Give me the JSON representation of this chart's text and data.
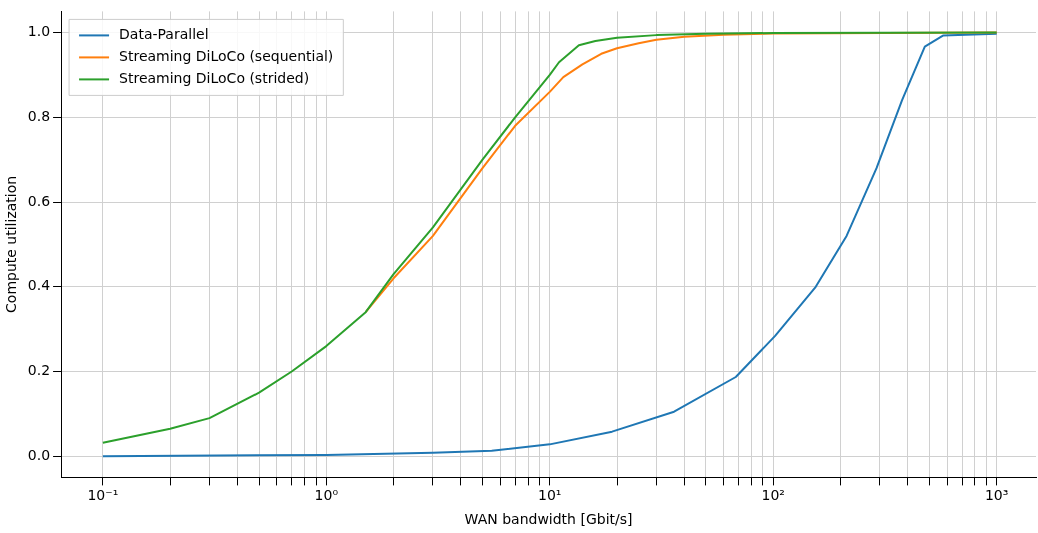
{
  "chart_data": {
    "type": "line",
    "xlabel": "WAN bandwidth [Gbit/s]",
    "ylabel": "Compute utilization",
    "log": "x",
    "grid": true,
    "legend": "top left",
    "marker": "none",
    "line_style": "solid",
    "xlim": [
      0.065,
      1500
    ],
    "ylim": [
      -0.05,
      1.05
    ],
    "xticks": [
      {
        "value": 0.1,
        "label": "10⁻¹"
      },
      {
        "value": 0.2,
        "label": null
      },
      {
        "value": 0.3,
        "label": null
      },
      {
        "value": 0.4,
        "label": null
      },
      {
        "value": 0.5,
        "label": null
      },
      {
        "value": 0.6,
        "label": null
      },
      {
        "value": 0.7,
        "label": null
      },
      {
        "value": 0.8,
        "label": null
      },
      {
        "value": 0.9,
        "label": null
      },
      {
        "value": 1,
        "label": "10⁰"
      },
      {
        "value": 2,
        "label": null
      },
      {
        "value": 3,
        "label": null
      },
      {
        "value": 4,
        "label": null
      },
      {
        "value": 5,
        "label": null
      },
      {
        "value": 6,
        "label": null
      },
      {
        "value": 7,
        "label": null
      },
      {
        "value": 8,
        "label": null
      },
      {
        "value": 9,
        "label": null
      },
      {
        "value": 10,
        "label": "10¹"
      },
      {
        "value": 20,
        "label": null
      },
      {
        "value": 30,
        "label": null
      },
      {
        "value": 40,
        "label": null
      },
      {
        "value": 50,
        "label": null
      },
      {
        "value": 60,
        "label": null
      },
      {
        "value": 70,
        "label": null
      },
      {
        "value": 80,
        "label": null
      },
      {
        "value": 90,
        "label": null
      },
      {
        "value": 100,
        "label": "10²"
      },
      {
        "value": 200,
        "label": null
      },
      {
        "value": 300,
        "label": null
      },
      {
        "value": 400,
        "label": null
      },
      {
        "value": 500,
        "label": null
      },
      {
        "value": 600,
        "label": null
      },
      {
        "value": 700,
        "label": null
      },
      {
        "value": 800,
        "label": null
      },
      {
        "value": 900,
        "label": null
      },
      {
        "value": 1000,
        "label": "10³"
      }
    ],
    "yticks": [
      {
        "value": 0,
        "label": "0.0"
      },
      {
        "value": 0.2,
        "label": "0.2"
      },
      {
        "value": 0.4,
        "label": "0.4"
      },
      {
        "value": 0.6,
        "label": "0.6"
      },
      {
        "value": 0.8,
        "label": "0.8"
      },
      {
        "value": 1,
        "label": "1.0"
      }
    ],
    "series": [
      {
        "name": "Data-Parallel",
        "color": "#1f77b4",
        "x": [
          0.1,
          1,
          3,
          5.5,
          10,
          19,
          36,
          68,
          102,
          155,
          213,
          290,
          377,
          477,
          575,
          1000
        ],
        "values": [
          0,
          0.003,
          0.008,
          0.013,
          0.028,
          0.058,
          0.105,
          0.187,
          0.284,
          0.4,
          0.52,
          0.68,
          0.84,
          0.967,
          0.993,
          0.997
        ]
      },
      {
        "name": "Streaming DiLoCo (sequential)",
        "color": "#ff7f0e",
        "x": [
          1.5,
          2,
          3,
          5,
          7,
          10,
          11.5,
          14,
          17,
          20,
          25,
          30,
          40,
          60,
          100,
          1000
        ],
        "values": [
          0.34,
          0.42,
          0.52,
          0.68,
          0.78,
          0.86,
          0.895,
          0.925,
          0.95,
          0.963,
          0.975,
          0.983,
          0.99,
          0.995,
          0.998,
          1.0
        ]
      },
      {
        "name": "Streaming DiLoCo (strided)",
        "color": "#2ca02c",
        "x": [
          0.1,
          0.2,
          0.3,
          0.5,
          0.7,
          1,
          1.5,
          2,
          3,
          5,
          7,
          10,
          11,
          13.5,
          16,
          20,
          30,
          50,
          100,
          1000
        ],
        "values": [
          0.032,
          0.065,
          0.09,
          0.15,
          0.2,
          0.26,
          0.34,
          0.43,
          0.54,
          0.7,
          0.8,
          0.9,
          0.93,
          0.97,
          0.98,
          0.988,
          0.994,
          0.997,
          0.999,
          1.0
        ]
      }
    ]
  }
}
